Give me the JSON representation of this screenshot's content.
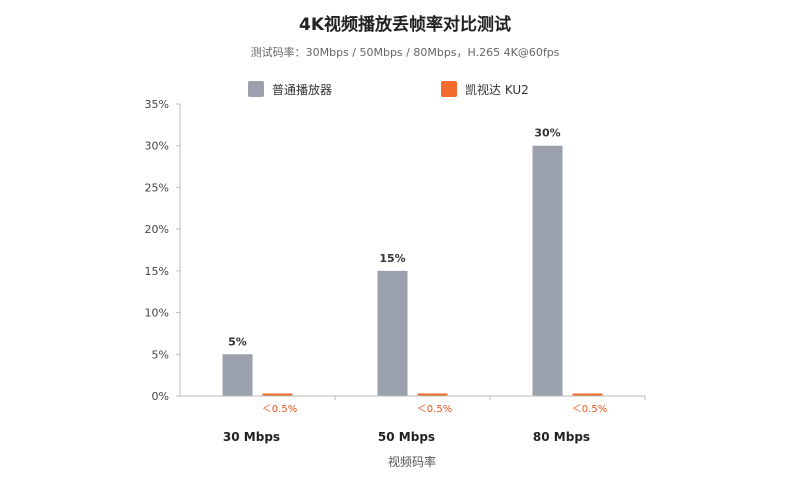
{
  "chart_data": {
    "type": "bar",
    "title": "4K视频播放丢帧率对比测试",
    "subtitle": "测试码率：30Mbps / 50Mbps / 80Mbps，H.265 4K@60fps",
    "xlabel": "视频码率",
    "ylabel": "",
    "categories": [
      "30 Mbps",
      "50 Mbps",
      "80 Mbps"
    ],
    "ylim": [
      0,
      35
    ],
    "yticks": [
      "0%",
      "5%",
      "10%",
      "15%",
      "20%",
      "25%",
      "30%",
      "35%"
    ],
    "ytick_values": [
      0,
      5,
      10,
      15,
      20,
      25,
      30,
      35
    ],
    "legend_position": "top",
    "grid": false,
    "series": [
      {
        "name": "普通播放器",
        "color": "#9aa1ad",
        "values": [
          5,
          15,
          30
        ],
        "labels": [
          "5%",
          "15%",
          "30%"
        ],
        "label_color": "#333333"
      },
      {
        "name": "凯视达 KU2",
        "color": "#f26b2b",
        "values": [
          0.3,
          0.3,
          0.3
        ],
        "labels": [
          "＜0.5%",
          "＜0.5%",
          "＜0.5%"
        ],
        "label_color": "#e8541e"
      }
    ]
  }
}
